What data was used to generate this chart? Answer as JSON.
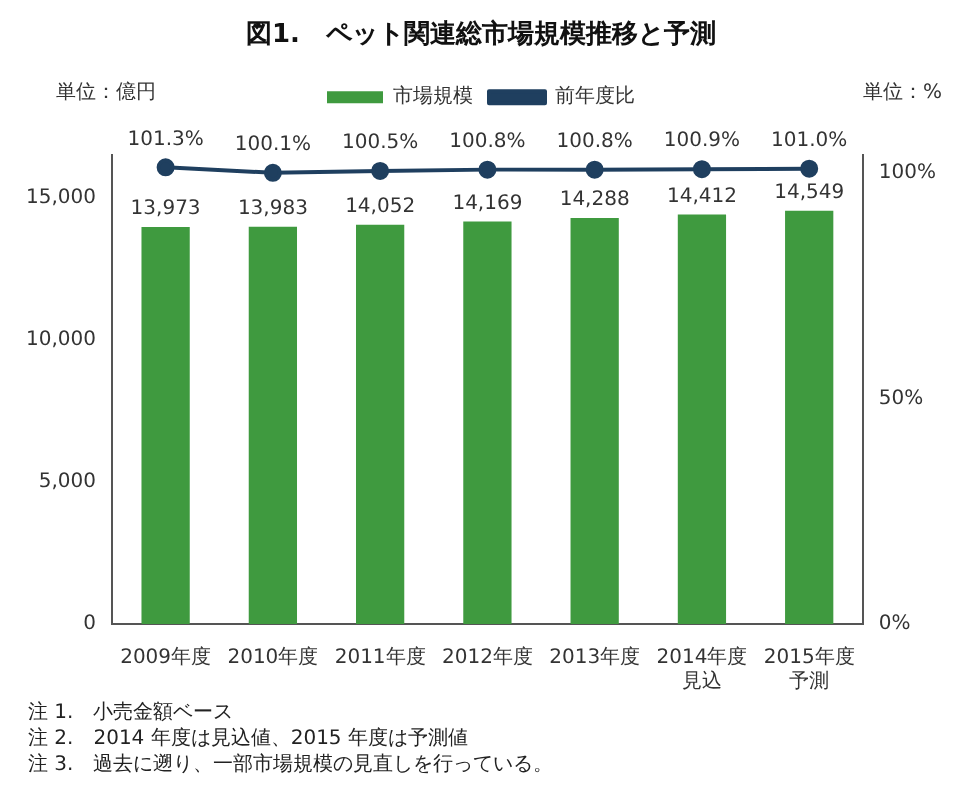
{
  "chart_data": {
    "type": "bar",
    "title": "図1.　ペット関連総市場規模推移と予測",
    "ylabel": "単位：億円",
    "y2label": "単位：%",
    "categories": [
      "2009年度",
      "2010年度",
      "2011年度",
      "2012年度",
      "2013年度",
      "2014年度見込",
      "2015年度予測"
    ],
    "series": [
      {
        "name": "市場規模",
        "color": "#3f9a3f",
        "values": [
          13973,
          13983,
          14052,
          14169,
          14288,
          14412,
          14549
        ],
        "value_labels": [
          "13,973",
          "13,983",
          "14,052",
          "14,169",
          "14,288",
          "14,412",
          "14,549"
        ]
      },
      {
        "name": "前年度比",
        "type": "line",
        "axis": "y2",
        "color": "#1f3f5f",
        "marker": "circle",
        "values": [
          101.3,
          100.1,
          100.5,
          100.8,
          100.8,
          100.9,
          101.0
        ],
        "value_labels": [
          "101.3%",
          "100.1%",
          "100.5%",
          "100.8%",
          "100.8%",
          "100.9%",
          "101.0%"
        ]
      }
    ],
    "ylim": [
      0,
      16500
    ],
    "yticks": [
      0,
      {
        "value": 5000,
        "label": "5,000"
      },
      {
        "value": 10000,
        "label": "10,000"
      },
      {
        "value": 15000,
        "label": "15,000"
      }
    ],
    "y2lim": [
      0,
      104
    ],
    "y2ticks": [
      {
        "value": 0,
        "label": "0%"
      },
      {
        "value": 50,
        "label": "50%"
      },
      {
        "value": 100,
        "label": "100%"
      }
    ],
    "grid": false,
    "legend": "top",
    "annotations": [
      "注 1.　小売金額ベース",
      "注 2.　2014 年度は見込値、2015 年度は予測値",
      "注 3.　過去に遡り、一部市場規模の見直しを行っている。"
    ]
  }
}
